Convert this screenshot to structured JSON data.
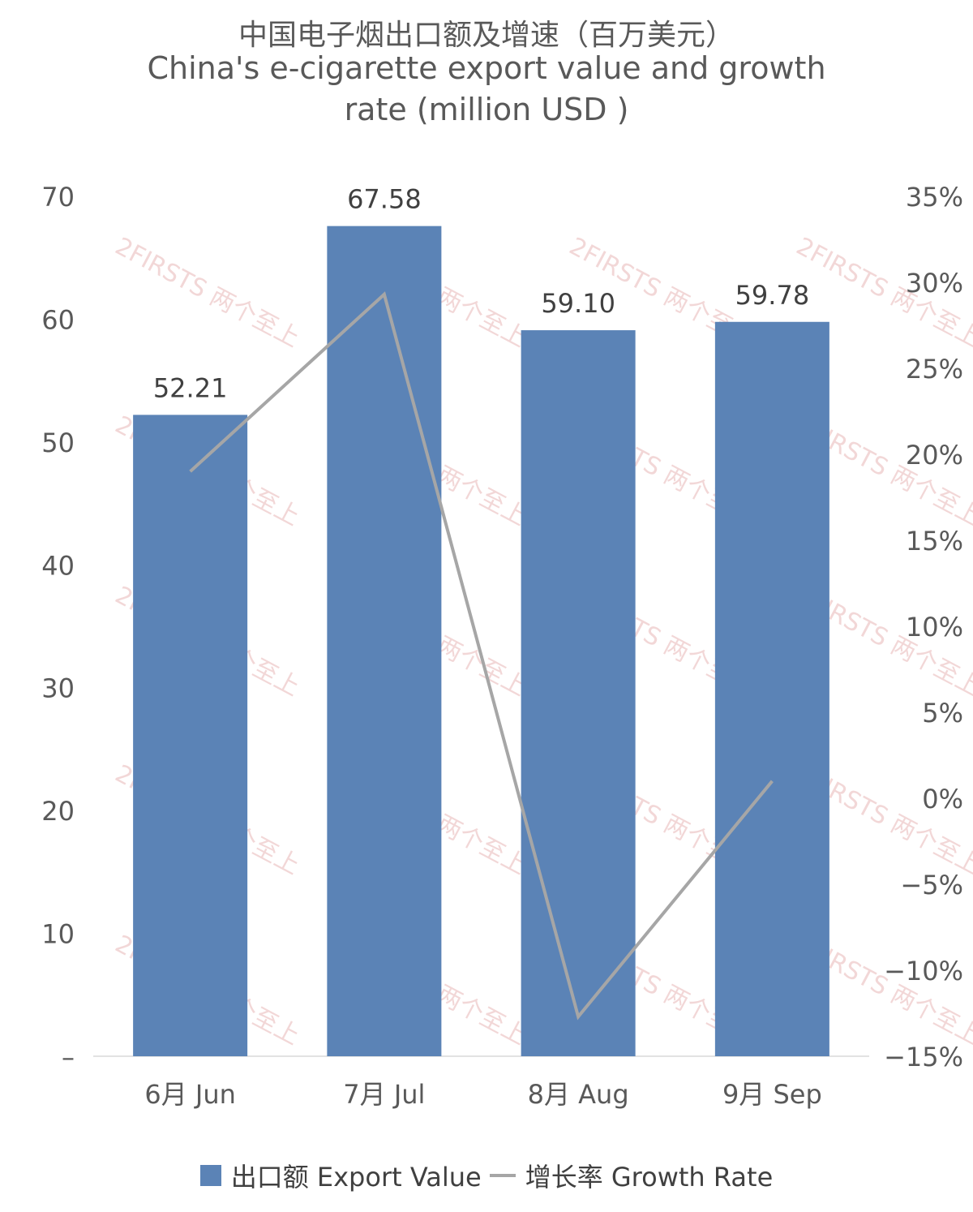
{
  "chart_data": {
    "type": "bar",
    "title_zh": "中国电子烟出口额及增速（百万美元）",
    "title_en_line1": "China's e-cigarette export value and growth",
    "title_en_line2": "rate (million USD )",
    "categories": [
      "6月 Jun",
      "7月 Jul",
      "8月 Aug",
      "9月 Sep"
    ],
    "series": [
      {
        "name": "出口额 Export Value",
        "type": "bar",
        "axis": "left",
        "color": "#5b83b6",
        "values": [
          52.21,
          67.58,
          59.1,
          59.78
        ],
        "labels": [
          "52.21",
          "67.58",
          "59.10",
          "59.78"
        ]
      },
      {
        "name": "增长率 Growth Rate",
        "type": "line",
        "axis": "right",
        "color": "#a6a6a6",
        "values": [
          0.19,
          0.293,
          -0.127,
          0.01
        ]
      }
    ],
    "left_axis": {
      "ylim": [
        0,
        70
      ],
      "ticks": [
        0,
        10,
        20,
        30,
        40,
        50,
        60,
        70
      ],
      "tick_labels": [
        "–",
        "10",
        "20",
        "30",
        "40",
        "50",
        "60",
        "70"
      ]
    },
    "right_axis": {
      "ylim": [
        -0.15,
        0.35
      ],
      "ticks": [
        -0.15,
        -0.1,
        -0.05,
        0,
        0.05,
        0.1,
        0.15,
        0.2,
        0.25,
        0.3,
        0.35
      ],
      "tick_labels": [
        "−15%",
        "−10%",
        "−5%",
        "0%",
        "5%",
        "10%",
        "15%",
        "20%",
        "25%",
        "30%",
        "35%"
      ]
    },
    "grid": false,
    "legend_position": "bottom"
  },
  "watermark": {
    "text": "2FIRSTS 两个至上",
    "color": "#e3a7a7"
  }
}
